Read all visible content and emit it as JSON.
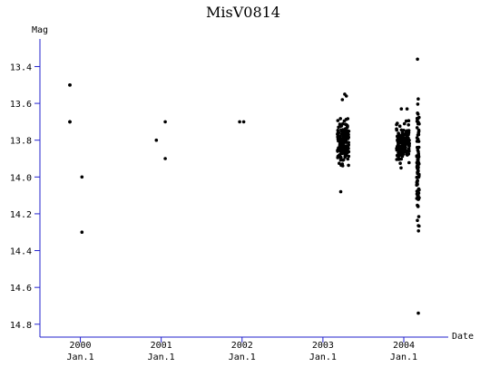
{
  "chart_data": {
    "type": "scatter",
    "title": "MisV0814",
    "ylabel": "Mag",
    "xlabel": "Date",
    "ylim": [
      13.25,
      14.87
    ],
    "y_inverted": true,
    "y_ticks": [
      "13.4",
      "13.6",
      "13.8",
      "14.0",
      "14.2",
      "14.4",
      "14.6",
      "14.8"
    ],
    "x_ticks": [
      {
        "year": "2000",
        "sub": "Jan.1"
      },
      {
        "year": "2001",
        "sub": "Jan.1"
      },
      {
        "year": "2002",
        "sub": "Jan.1"
      },
      {
        "year": "2003",
        "sub": "Jan.1"
      },
      {
        "year": "2004",
        "sub": "Jan.1"
      }
    ],
    "x_unit": "year (decimal)",
    "xlim": [
      1999.5,
      2004.55
    ],
    "isolated_points": [
      {
        "x": 1999.87,
        "y": 13.5
      },
      {
        "x": 1999.87,
        "y": 13.7
      },
      {
        "x": 2000.02,
        "y": 14.0
      },
      {
        "x": 2000.02,
        "y": 14.3
      },
      {
        "x": 2000.94,
        "y": 13.8
      },
      {
        "x": 2001.05,
        "y": 13.7
      },
      {
        "x": 2001.05,
        "y": 13.9
      },
      {
        "x": 1999.87,
        "y": 13.5
      },
      {
        "x": 1999.87,
        "y": 13.5
      },
      {
        "x": 1999.87,
        "y": 13.7
      },
      {
        "x": 1999.87,
        "y": 13.7
      },
      {
        "x": 2001.97,
        "y": 13.7
      },
      {
        "x": 2002.02,
        "y": 13.7
      }
    ],
    "clusters": [
      {
        "x_range": [
          2003.18,
          2003.32
        ],
        "y_range": [
          13.62,
          14.0
        ],
        "count": 170,
        "outliers": [
          {
            "x": 2003.27,
            "y": 13.55
          },
          {
            "x": 2003.24,
            "y": 13.58
          },
          {
            "x": 2003.22,
            "y": 14.08
          },
          {
            "x": 2003.29,
            "y": 13.56
          }
        ]
      },
      {
        "x_range": [
          2003.91,
          2004.07
        ],
        "y_range": [
          13.65,
          13.99
        ],
        "count": 160,
        "outliers": [
          {
            "x": 2003.97,
            "y": 13.63
          },
          {
            "x": 2004.04,
            "y": 13.63
          }
        ]
      },
      {
        "x_range": [
          2004.16,
          2004.19
        ],
        "y_range": [
          13.35,
          14.55
        ],
        "count": 90,
        "outliers": [
          {
            "x": 2004.18,
            "y": 14.74
          },
          {
            "x": 2004.17,
            "y": 13.36
          }
        ]
      }
    ]
  }
}
